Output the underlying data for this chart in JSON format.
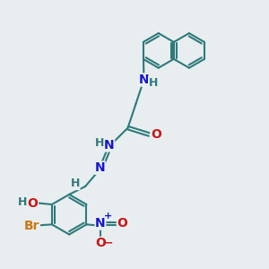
{
  "bg_color": "#e8eef0",
  "bond_color": "#2e7a7a",
  "bond_width": 1.5,
  "N_color": "#1515cc",
  "O_color": "#cc1515",
  "Br_color": "#cc7715",
  "H_color": "#2e7a7a",
  "font_size_atom": 10,
  "font_size_H": 9,
  "font_size_charge": 8,
  "xlim": [
    0,
    10
  ],
  "ylim": [
    0,
    10
  ]
}
